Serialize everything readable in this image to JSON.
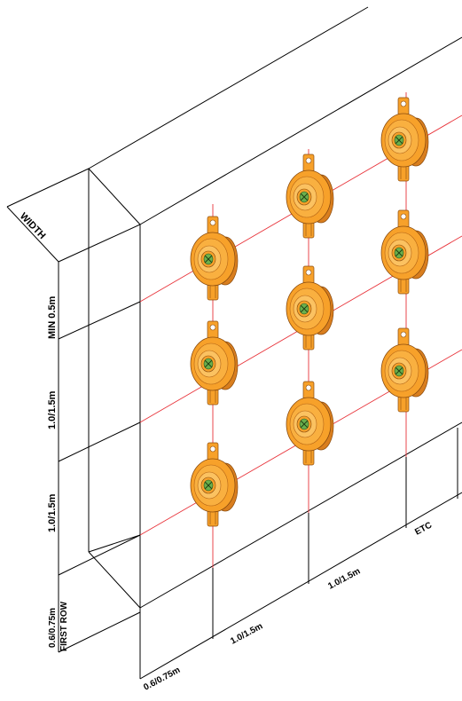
{
  "diagram": {
    "left_labels": {
      "width": "WIDTH",
      "min": "MIN 0.5m",
      "spacing_upper": "1.0/1.5m",
      "spacing_lower": "1.0/1.5m",
      "first_row_value": "0.6/0.75m",
      "first_row_text": "FIRST ROW"
    },
    "bottom_labels": {
      "first": "0.6/0.75m",
      "second": "1.0/1.5m",
      "third": "1.0/1.5m",
      "etc": "ETC"
    },
    "colors": {
      "line": "#000000",
      "guide": "#e8333a",
      "anchor_body": "#f7a12a",
      "anchor_shadow": "#c8701a",
      "anchor_center": "#6ab04c"
    },
    "anchor_count": 9
  }
}
